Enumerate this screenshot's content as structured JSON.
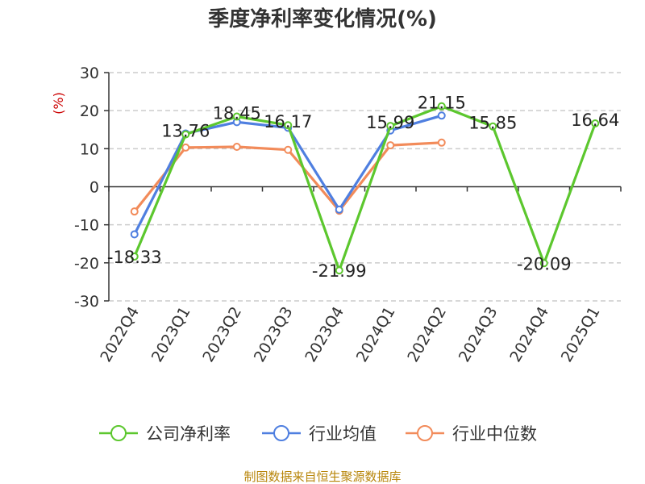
{
  "chart_data": {
    "type": "line",
    "title": "季度净利率变化情况(%)",
    "ylabel": "(%)",
    "ylim": [
      -30,
      30
    ],
    "yticks": [
      30,
      20,
      10,
      0,
      -10,
      -20,
      -30
    ],
    "categories": [
      "2022Q4",
      "2023Q1",
      "2023Q2",
      "2023Q3",
      "2023Q4",
      "2024Q1",
      "2024Q2",
      "2024Q3",
      "2024Q4",
      "2025Q1"
    ],
    "series": [
      {
        "name": "公司净利率",
        "color": "#5cc72e",
        "values": [
          -18.33,
          13.76,
          18.45,
          16.17,
          -21.99,
          15.99,
          21.15,
          15.85,
          -20.09,
          16.64
        ],
        "labels": [
          "-18.33",
          "13.76",
          "18.45",
          "16.17",
          "-21.99",
          "15.99",
          "21.15",
          "15.85",
          "-20.09",
          "16.64"
        ]
      },
      {
        "name": "行业均值",
        "color": "#4f7fe0",
        "values": [
          -12.5,
          14.0,
          17.0,
          15.5,
          -6.0,
          14.8,
          18.7,
          null,
          null,
          null
        ]
      },
      {
        "name": "行业中位数",
        "color": "#f28b5a",
        "values": [
          -6.5,
          10.3,
          10.5,
          9.7,
          -6.3,
          10.9,
          11.6,
          null,
          null,
          null
        ]
      }
    ],
    "grid": true,
    "legend_position": "bottom"
  },
  "source": "制图数据来自恒生聚源数据库"
}
